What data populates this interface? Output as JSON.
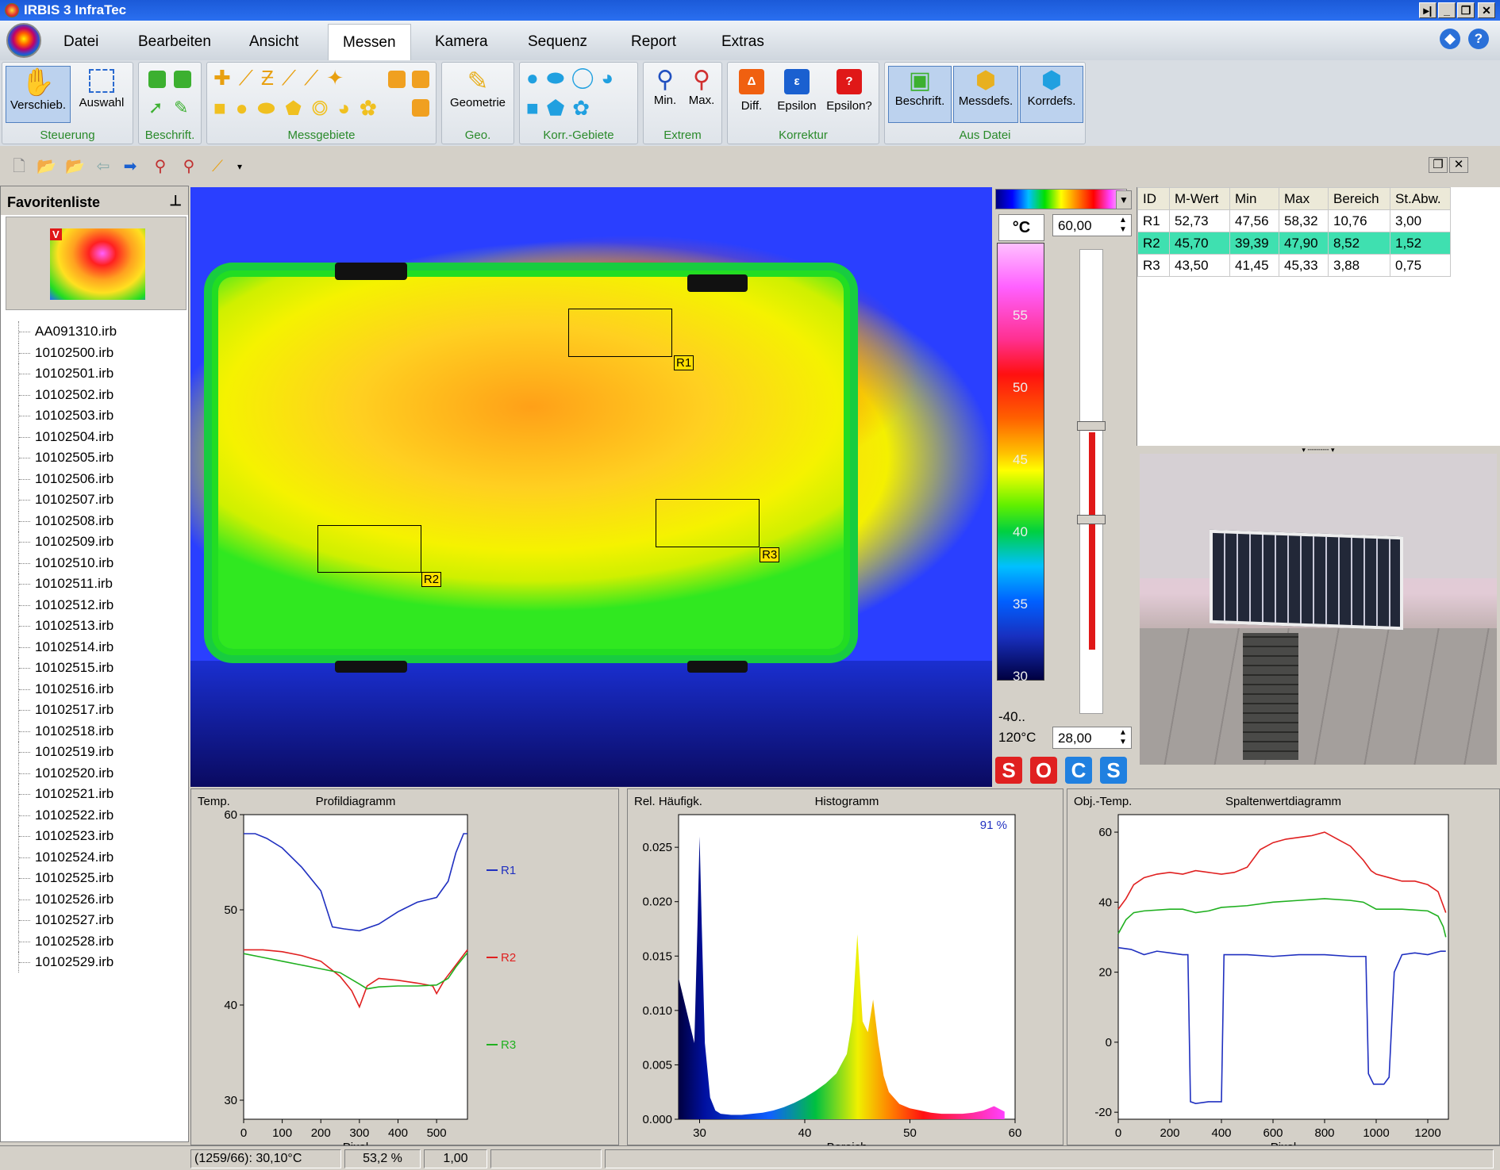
{
  "window": {
    "title": "IRBIS 3 InfraTec"
  },
  "menu": [
    "Datei",
    "Bearbeiten",
    "Ansicht",
    "Messen",
    "Kamera",
    "Sequenz",
    "Report",
    "Extras"
  ],
  "ribbon": {
    "steuerung": {
      "label": "Steuerung",
      "buttons": [
        "Verschieb.",
        "Auswahl"
      ]
    },
    "beschrift": {
      "label": "Beschrift."
    },
    "messgebiete": {
      "label": "Messgebiete"
    },
    "geo": {
      "label": "Geo.",
      "button": "Geometrie"
    },
    "korr": {
      "label": "Korr.-Gebiete"
    },
    "extrem": {
      "label": "Extrem",
      "buttons": [
        "Min.",
        "Max."
      ]
    },
    "korrektur": {
      "label": "Korrektur",
      "buttons": [
        "Diff.",
        "Epsilon",
        "Epsilon?"
      ],
      "glyphs": [
        "Δ",
        "ε",
        "?"
      ]
    },
    "ausdatei": {
      "label": "Aus Datei",
      "buttons": [
        "Beschrift.",
        "Messdefs.",
        "Korrdefs."
      ]
    }
  },
  "favorites": {
    "title": "Favoritenliste",
    "thumb_badge": "V",
    "files": [
      "AA091310.irb",
      "10102500.irb",
      "10102501.irb",
      "10102502.irb",
      "10102503.irb",
      "10102504.irb",
      "10102505.irb",
      "10102506.irb",
      "10102507.irb",
      "10102508.irb",
      "10102509.irb",
      "10102510.irb",
      "10102511.irb",
      "10102512.irb",
      "10102513.irb",
      "10102514.irb",
      "10102515.irb",
      "10102516.irb",
      "10102517.irb",
      "10102518.irb",
      "10102519.irb",
      "10102520.irb",
      "10102521.irb",
      "10102522.irb",
      "10102523.irb",
      "10102524.irb",
      "10102525.irb",
      "10102526.irb",
      "10102527.irb",
      "10102528.irb",
      "10102529.irb"
    ]
  },
  "thermal": {
    "rois": [
      "R1",
      "R2",
      "R3"
    ]
  },
  "colorscale": {
    "unit": "°C",
    "max_value": "60,00",
    "min_value": "28,00",
    "ticks": [
      "55",
      "50",
      "45",
      "40",
      "35",
      "30"
    ],
    "range_top": "-40..",
    "range_bottom": "120°C",
    "buttons": [
      "S",
      "O",
      "C",
      "S"
    ]
  },
  "table": {
    "headers": [
      "ID",
      "M-Wert",
      "Min",
      "Max",
      "Bereich",
      "St.Abw."
    ],
    "rows": [
      [
        "R1",
        "52,73",
        "47,56",
        "58,32",
        "10,76",
        "3,00"
      ],
      [
        "R2",
        "45,70",
        "39,39",
        "47,90",
        "8,52",
        "1,52"
      ],
      [
        "R3",
        "43,50",
        "41,45",
        "45,33",
        "3,88",
        "0,75"
      ]
    ],
    "selected_row": 1
  },
  "charts": [
    {
      "type": "line",
      "title": "Profildiagramm",
      "ylabel": "Temp.",
      "xlabel": "Pixel",
      "xlim": [
        0,
        580
      ],
      "ylim": [
        28,
        60
      ],
      "xticks": [
        "0",
        "100",
        "200",
        "300",
        "400",
        "500"
      ],
      "yticks": [
        "60",
        "50",
        "40",
        "30"
      ],
      "series": [
        {
          "name": "R1",
          "color": "#2030c0",
          "x": [
            0,
            30,
            60,
            100,
            150,
            200,
            230,
            260,
            300,
            350,
            400,
            450,
            500,
            530,
            550,
            570,
            580
          ],
          "y": [
            58,
            58,
            57.5,
            56.5,
            54.5,
            52,
            48.2,
            48,
            47.8,
            48.5,
            49.8,
            50.8,
            51.3,
            53,
            56,
            58,
            58
          ]
        },
        {
          "name": "R2",
          "color": "#e02020",
          "x": [
            0,
            50,
            100,
            150,
            200,
            250,
            280,
            300,
            320,
            350,
            400,
            450,
            490,
            500,
            520,
            550,
            580
          ],
          "y": [
            45.8,
            45.8,
            45.6,
            45.2,
            44.6,
            43,
            41.5,
            39.8,
            42,
            42.8,
            42.6,
            42.3,
            42,
            41.2,
            42.6,
            44.2,
            45.8
          ]
        },
        {
          "name": "R3",
          "color": "#20b020",
          "x": [
            0,
            50,
            100,
            150,
            200,
            250,
            300,
            320,
            350,
            400,
            450,
            500,
            530,
            550,
            580
          ],
          "y": [
            45.4,
            45,
            44.6,
            44.2,
            43.8,
            43.4,
            42.2,
            41.7,
            41.9,
            42,
            42,
            42.1,
            42.8,
            44,
            45.5
          ]
        }
      ]
    },
    {
      "type": "area",
      "title": "Histogramm",
      "ylabel": "Rel. Häufigk.",
      "xlabel": "Bereich",
      "xlim": [
        28,
        60
      ],
      "ylim": [
        0,
        0.028
      ],
      "annotation": "91 %",
      "xticks": [
        "30",
        "40",
        "50",
        "60"
      ],
      "yticks": [
        "0.025",
        "0.020",
        "0.015",
        "0.010",
        "0.005",
        "0.000"
      ],
      "x": [
        28,
        28.5,
        29,
        29.5,
        29.8,
        30,
        30.2,
        30.5,
        31,
        31.5,
        32,
        33,
        34,
        35,
        36,
        37,
        38,
        39,
        40,
        41,
        42,
        43,
        44,
        44.5,
        45,
        45.5,
        46,
        46.5,
        47,
        47.5,
        48,
        49,
        50,
        51,
        52,
        53,
        54,
        55,
        56,
        57,
        58,
        59
      ],
      "y": [
        0.013,
        0.011,
        0.009,
        0.007,
        0.018,
        0.026,
        0.018,
        0.007,
        0.002,
        0.0008,
        0.0005,
        0.0004,
        0.0004,
        0.0005,
        0.0006,
        0.0008,
        0.0011,
        0.0015,
        0.002,
        0.0026,
        0.0033,
        0.0042,
        0.006,
        0.009,
        0.017,
        0.009,
        0.008,
        0.011,
        0.007,
        0.004,
        0.0025,
        0.0014,
        0.001,
        0.0008,
        0.0006,
        0.0005,
        0.0005,
        0.0005,
        0.0006,
        0.0008,
        0.0012,
        0.0007
      ]
    },
    {
      "type": "line",
      "title": "Spaltenwertdiagramm",
      "ylabel": "Obj.-Temp.",
      "xlabel": "Pixel",
      "xlim": [
        0,
        1280
      ],
      "ylim": [
        -22,
        65
      ],
      "xticks": [
        "0",
        "200",
        "400",
        "600",
        "800",
        "1000",
        "1200"
      ],
      "yticks": [
        "60",
        "40",
        "20",
        "0",
        "-20"
      ],
      "series": [
        {
          "name": "",
          "color": "#e02020",
          "x": [
            0,
            30,
            60,
            100,
            150,
            200,
            250,
            300,
            350,
            400,
            450,
            500,
            550,
            600,
            650,
            700,
            750,
            800,
            850,
            900,
            950,
            980,
            1000,
            1050,
            1100,
            1150,
            1200,
            1240,
            1260,
            1270
          ],
          "y": [
            38,
            41,
            45,
            47,
            48,
            48.5,
            48,
            49,
            48.5,
            48,
            48.5,
            50,
            55,
            57,
            58,
            58.5,
            59,
            60,
            58,
            56,
            52,
            49,
            48,
            47,
            46,
            46,
            45,
            43,
            39,
            37
          ]
        },
        {
          "name": "",
          "color": "#20b020",
          "x": [
            0,
            30,
            60,
            100,
            200,
            250,
            300,
            350,
            400,
            500,
            600,
            700,
            800,
            900,
            950,
            1000,
            1100,
            1200,
            1240,
            1260,
            1270
          ],
          "y": [
            31,
            35,
            37,
            37.5,
            38,
            38,
            37,
            37.5,
            38.5,
            39,
            40,
            40.5,
            41,
            40.5,
            40,
            38,
            38,
            37.5,
            36,
            33,
            30
          ]
        },
        {
          "name": "",
          "color": "#2030c0",
          "x": [
            0,
            50,
            100,
            150,
            200,
            250,
            270,
            280,
            300,
            350,
            400,
            410,
            430,
            500,
            600,
            700,
            800,
            900,
            950,
            960,
            970,
            990,
            1030,
            1050,
            1070,
            1100,
            1150,
            1200,
            1250,
            1270
          ],
          "y": [
            27,
            26.5,
            25,
            26,
            25.5,
            25,
            25,
            -17,
            -17.5,
            -17,
            -17,
            25,
            25,
            25,
            24.5,
            25,
            25,
            24.5,
            24.5,
            24.5,
            -9,
            -12,
            -12,
            -10,
            20,
            25,
            25.5,
            25,
            26,
            26
          ]
        }
      ]
    }
  ],
  "status": [
    "(1259/66): 30,10°C",
    "53,2 %",
    "1,00"
  ]
}
